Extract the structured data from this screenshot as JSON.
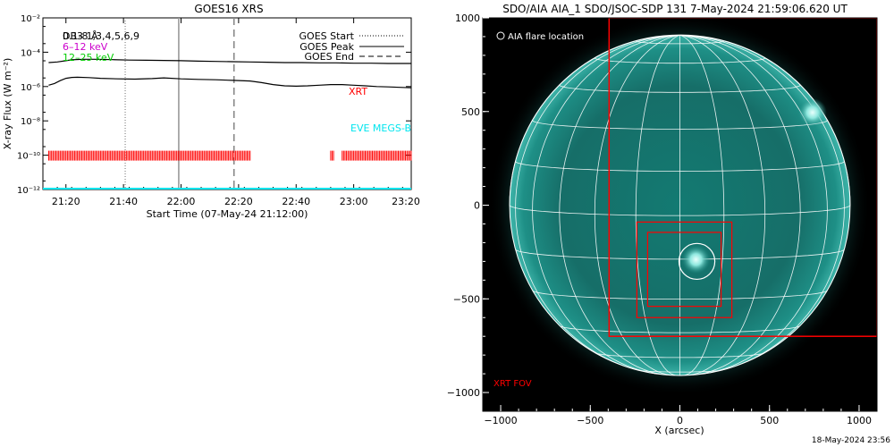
{
  "goes_panel": {
    "title": "GOES16 XRS",
    "ylabel": "X-ray Flux (W m⁻²)",
    "xlabel": "Start Time (07-May-24 21:12:00)",
    "channel_line": "0.1-8 Å",
    "overlap_text": "DB3 1,3,4,5,6,9",
    "legend_left": [
      {
        "label": "6–12 keV",
        "color": "#cc00cc"
      },
      {
        "label": "12–25 keV",
        "color": "#00cc00"
      }
    ],
    "legend_right": [
      {
        "label": "GOES Start",
        "style": "dotted"
      },
      {
        "label": "GOES Peak",
        "style": "solid"
      },
      {
        "label": "GOES End",
        "style": "dashed"
      }
    ],
    "xrt_label": "XRT",
    "xrt_color": "#ff0000",
    "eve_label": "EVE MEGS-B",
    "eve_color": "#00e5ee"
  },
  "aia_panel": {
    "title": "SDO/AIA AIA_1 SDO/JSOC-SDP 131  7-May-2024 21:59:06.620 UT",
    "legend": "AIA flare location",
    "xlabel": "X (arcsec)",
    "fov_label": "XRT FOV",
    "footer": "18-May-2024 23:56",
    "disk_color": "#1f8f86"
  },
  "chart_data": [
    {
      "type": "line",
      "title": "GOES16 XRS",
      "xlabel": "Start Time (07-May-24 21:12:00)",
      "ylabel": "X-ray Flux (W m⁻²)",
      "x_unit": "minutes after 21:12",
      "xlim": [
        0,
        128
      ],
      "ylim": [
        1e-12,
        0.01
      ],
      "yscale": "log",
      "x_ticks": [
        {
          "label": "21:20",
          "value": 8
        },
        {
          "label": "21:40",
          "value": 28
        },
        {
          "label": "22:00",
          "value": 48
        },
        {
          "label": "22:20",
          "value": 68
        },
        {
          "label": "22:40",
          "value": 88
        },
        {
          "label": "23:00",
          "value": 108
        },
        {
          "label": "23:20",
          "value": 128
        }
      ],
      "y_ticks": [
        {
          "label": "10⁻¹²",
          "value": 1e-12
        },
        {
          "label": "10⁻¹⁰",
          "value": 1e-10
        },
        {
          "label": "10⁻⁸",
          "value": 1e-08
        },
        {
          "label": "10⁻⁶",
          "value": 1e-06
        },
        {
          "label": "10⁻⁴",
          "value": 0.0001
        },
        {
          "label": "10⁻²",
          "value": 0.01
        }
      ],
      "series": [
        {
          "color": "#000000",
          "x": [
            2,
            5,
            8,
            10,
            14,
            18,
            24,
            30,
            36,
            42,
            48,
            54,
            60,
            66,
            72,
            78,
            84,
            90,
            96,
            102,
            108,
            114,
            120,
            124,
            128
          ],
          "y": [
            2.5e-05,
            2.7e-05,
            3.2e-05,
            3.6e-05,
            3.9e-05,
            3.9e-05,
            3.7e-05,
            3.5e-05,
            3.4e-05,
            3.3e-05,
            3.2e-05,
            3e-05,
            2.9e-05,
            2.8e-05,
            2.7e-05,
            2.6e-05,
            2.5e-05,
            2.5e-05,
            2.4e-05,
            2.4e-05,
            2.3e-05,
            2.3e-05,
            2.2e-05,
            2.2e-05,
            2.2e-05
          ]
        },
        {
          "color": "#000000",
          "x": [
            2,
            4,
            6,
            8,
            10,
            12,
            16,
            20,
            26,
            32,
            38,
            42,
            48,
            54,
            60,
            66,
            72,
            76,
            80,
            84,
            88,
            92,
            96,
            100,
            104,
            108,
            112,
            116,
            120,
            124,
            128
          ],
          "y": [
            1.2e-06,
            1.5e-06,
            2.2e-06,
            3e-06,
            3.4e-06,
            3.5e-06,
            3.3e-06,
            3e-06,
            2.8e-06,
            2.7e-06,
            2.9e-06,
            3.2e-06,
            2.8e-06,
            2.6e-06,
            2.5e-06,
            2.3e-06,
            2.1e-06,
            1.7e-06,
            1.3e-06,
            1.1e-06,
            1.05e-06,
            1.1e-06,
            1.2e-06,
            1.3e-06,
            1.3e-06,
            1.2e-06,
            1.1e-06,
            1e-06,
            9.5e-07,
            9e-07,
            8.5e-07
          ]
        },
        {
          "name": "EVE MEGS-B",
          "color": "#00e5ee",
          "x": [
            0,
            128
          ],
          "y": [
            1e-12,
            1e-12
          ]
        }
      ],
      "xrt_segments": [
        [
          2,
          72
        ],
        [
          100,
          101
        ],
        [
          104,
          128
        ]
      ],
      "xrt_level": 1e-10,
      "markers": {
        "start": 28.6,
        "peak": 47.2,
        "end": 66.4
      }
    },
    {
      "type": "scatter",
      "title": "SDO/AIA AIA_1 SDO/JSOC-SDP 131  7-May-2024 21:59:06.620 UT",
      "xlabel": "X (arcsec)",
      "xlim": [
        -1100,
        1100
      ],
      "ylim": [
        -1100,
        1000
      ],
      "x_ticks": [
        -1000,
        -500,
        0,
        500,
        1000
      ],
      "y_ticks": [
        -1000,
        -500,
        0,
        500,
        1000
      ],
      "solar_radius": 950,
      "flare_location": {
        "x": 95,
        "y": -300,
        "r": 100
      },
      "xrt_fov": [
        -395,
        -700,
        1100,
        1000
      ],
      "boxes": [
        {
          "x0": -240,
          "x1": 290,
          "y0": -600,
          "y1": -90
        },
        {
          "x0": -180,
          "x1": 230,
          "y0": -540,
          "y1": -145
        }
      ],
      "bright_spots": [
        {
          "x": 740,
          "y": 495
        },
        {
          "x": 90,
          "y": -290
        }
      ]
    }
  ]
}
